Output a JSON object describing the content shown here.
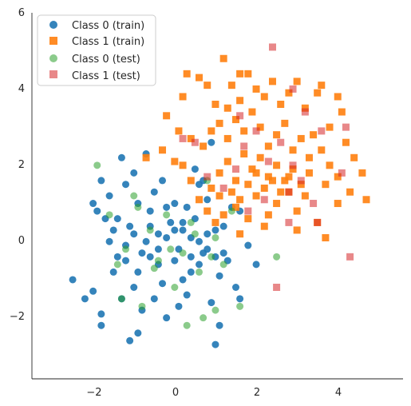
{
  "chart_data": {
    "type": "scatter",
    "title": "",
    "xlabel": "",
    "ylabel": "",
    "xlim": [
      -3.5,
      5.6
    ],
    "ylim": [
      -3.6,
      6.0
    ],
    "xticks": [
      -2,
      0,
      2,
      4
    ],
    "yticks": [
      -2,
      0,
      2,
      4,
      6
    ],
    "xtick_labels": [
      "−2",
      "0",
      "2",
      "4"
    ],
    "ytick_labels": [
      "−2",
      "0",
      "2",
      "4",
      "6"
    ],
    "grid": false,
    "legend_position": "top-left",
    "series": [
      {
        "name": "Class 0 (train)",
        "marker": "circle",
        "color": "#1f77b4",
        "opacity": 0.9,
        "points": [
          [
            -2.5,
            -1.0
          ],
          [
            -2.2,
            -1.5
          ],
          [
            -2.0,
            -1.3
          ],
          [
            -1.8,
            -1.9
          ],
          [
            -1.8,
            -2.2
          ],
          [
            -1.9,
            0.8
          ],
          [
            -1.7,
            0.6
          ],
          [
            -1.6,
            1.2
          ],
          [
            -1.5,
            0.3
          ],
          [
            -1.4,
            -0.4
          ],
          [
            -1.3,
            2.2
          ],
          [
            -1.2,
            1.5
          ],
          [
            -1.0,
            1.8
          ],
          [
            -1.1,
            0.4
          ],
          [
            -1.2,
            -0.5
          ],
          [
            -1.0,
            -1.2
          ],
          [
            -0.9,
            -2.4
          ],
          [
            -0.8,
            -1.8
          ],
          [
            -0.7,
            0.0
          ],
          [
            -0.6,
            0.8
          ],
          [
            -0.5,
            1.3
          ],
          [
            -0.4,
            -0.6
          ],
          [
            -0.3,
            -1.1
          ],
          [
            -0.2,
            -2.0
          ],
          [
            -0.1,
            0.5
          ],
          [
            0.0,
            1.0
          ],
          [
            0.1,
            -0.2
          ],
          [
            0.2,
            0.3
          ],
          [
            0.3,
            -1.4
          ],
          [
            0.4,
            -0.8
          ],
          [
            0.5,
            0.6
          ],
          [
            0.6,
            1.5
          ],
          [
            0.7,
            -0.3
          ],
          [
            0.8,
            0.2
          ],
          [
            0.9,
            -1.6
          ],
          [
            1.0,
            -2.7
          ],
          [
            1.1,
            -0.9
          ],
          [
            1.2,
            0.4
          ],
          [
            1.3,
            -0.5
          ],
          [
            1.5,
            -1.2
          ],
          [
            1.6,
            0.8
          ],
          [
            1.8,
            -0.1
          ],
          [
            2.0,
            -0.6
          ],
          [
            -1.5,
            -0.8
          ],
          [
            -1.3,
            -1.5
          ],
          [
            -1.1,
            -2.6
          ],
          [
            -0.9,
            1.0
          ],
          [
            -0.6,
            -0.4
          ],
          [
            -0.4,
            0.2
          ],
          [
            -0.2,
            0.9
          ],
          [
            0.0,
            -0.5
          ],
          [
            0.2,
            -1.0
          ],
          [
            0.4,
            0.1
          ],
          [
            0.6,
            -0.6
          ],
          [
            0.8,
            1.1
          ],
          [
            1.0,
            0.3
          ],
          [
            1.2,
            -0.3
          ],
          [
            1.4,
            0.9
          ],
          [
            -1.6,
            0.0
          ],
          [
            -1.4,
            0.6
          ],
          [
            -1.2,
            -0.1
          ],
          [
            -1.0,
            0.2
          ],
          [
            -0.8,
            -0.3
          ],
          [
            -0.6,
            0.4
          ],
          [
            -0.4,
            -0.2
          ],
          [
            -0.2,
            0.1
          ],
          [
            0.0,
            0.3
          ],
          [
            0.2,
            0.5
          ],
          [
            0.4,
            -0.4
          ],
          [
            0.6,
            0.0
          ],
          [
            0.8,
            -0.2
          ],
          [
            1.0,
            -0.4
          ],
          [
            0.5,
            1.9
          ],
          [
            0.7,
            1.6
          ],
          [
            -0.3,
            1.6
          ],
          [
            -0.5,
            -1.5
          ],
          [
            0.1,
            -1.7
          ],
          [
            1.1,
            -2.2
          ],
          [
            1.6,
            -1.5
          ],
          [
            -0.7,
            2.3
          ],
          [
            0.9,
            2.6
          ],
          [
            -2.0,
            1.0
          ],
          [
            -1.8,
            1.6
          ],
          [
            -0.9,
            -0.8
          ],
          [
            0.3,
            0.9
          ]
        ]
      },
      {
        "name": "Class 1 (train)",
        "marker": "square",
        "color": "#ff7f0e",
        "opacity": 0.9,
        "points": [
          [
            -0.7,
            2.2
          ],
          [
            -0.3,
            2.4
          ],
          [
            -0.2,
            3.3
          ],
          [
            0.2,
            3.8
          ],
          [
            0.3,
            4.4
          ],
          [
            0.6,
            4.3
          ],
          [
            0.8,
            4.1
          ],
          [
            1.0,
            3.6
          ],
          [
            1.2,
            4.8
          ],
          [
            1.4,
            4.1
          ],
          [
            1.6,
            4.4
          ],
          [
            1.8,
            4.4
          ],
          [
            2.0,
            4.0
          ],
          [
            2.2,
            3.8
          ],
          [
            2.4,
            4.2
          ],
          [
            2.6,
            3.6
          ],
          [
            2.8,
            3.9
          ],
          [
            3.0,
            4.2
          ],
          [
            3.2,
            3.5
          ],
          [
            3.5,
            3.9
          ],
          [
            3.6,
            4.1
          ],
          [
            4.0,
            3.8
          ],
          [
            4.1,
            3.4
          ],
          [
            3.8,
            3.0
          ],
          [
            4.2,
            2.6
          ],
          [
            4.4,
            2.2
          ],
          [
            4.6,
            1.8
          ],
          [
            4.7,
            1.1
          ],
          [
            4.3,
            1.3
          ],
          [
            4.0,
            1.0
          ],
          [
            3.7,
            1.5
          ],
          [
            3.5,
            0.5
          ],
          [
            3.2,
            1.2
          ],
          [
            3.0,
            0.8
          ],
          [
            2.8,
            1.3
          ],
          [
            2.5,
            1.0
          ],
          [
            2.3,
            0.7
          ],
          [
            2.0,
            1.2
          ],
          [
            1.8,
            0.6
          ],
          [
            1.5,
            0.9
          ],
          [
            1.2,
            0.7
          ],
          [
            1.0,
            0.5
          ],
          [
            0.8,
            0.8
          ],
          [
            0.6,
            1.1
          ],
          [
            0.4,
            1.6
          ],
          [
            0.2,
            2.0
          ],
          [
            0.0,
            2.1
          ],
          [
            1.3,
            2.7
          ],
          [
            1.5,
            3.2
          ],
          [
            1.7,
            2.9
          ],
          [
            1.9,
            3.4
          ],
          [
            2.1,
            3.0
          ],
          [
            2.3,
            2.5
          ],
          [
            2.5,
            2.8
          ],
          [
            2.7,
            3.1
          ],
          [
            2.9,
            2.4
          ],
          [
            3.1,
            2.7
          ],
          [
            3.3,
            2.2
          ],
          [
            3.4,
            2.8
          ],
          [
            3.6,
            2.4
          ],
          [
            3.8,
            2.0
          ],
          [
            4.0,
            1.7
          ],
          [
            1.1,
            1.8
          ],
          [
            1.3,
            2.1
          ],
          [
            1.5,
            1.6
          ],
          [
            1.7,
            2.3
          ],
          [
            1.9,
            1.9
          ],
          [
            2.1,
            2.2
          ],
          [
            2.3,
            1.7
          ],
          [
            2.5,
            2.0
          ],
          [
            2.7,
            1.6
          ],
          [
            2.9,
            1.9
          ],
          [
            3.1,
            1.5
          ],
          [
            3.3,
            1.8
          ],
          [
            0.9,
            1.4
          ],
          [
            1.1,
            1.2
          ],
          [
            1.4,
            1.3
          ],
          [
            1.6,
            1.1
          ],
          [
            1.8,
            1.5
          ],
          [
            2.0,
            1.8
          ],
          [
            2.2,
            1.4
          ],
          [
            2.4,
            1.6
          ],
          [
            2.6,
            1.3
          ],
          [
            2.8,
            1.7
          ],
          [
            0.7,
            2.5
          ],
          [
            0.9,
            2.9
          ],
          [
            1.1,
            3.1
          ],
          [
            1.3,
            3.5
          ],
          [
            1.6,
            3.7
          ],
          [
            3.7,
            0.1
          ],
          [
            3.0,
            0.3
          ],
          [
            2.2,
            0.4
          ],
          [
            1.6,
            0.2
          ],
          [
            0.4,
            2.7
          ],
          [
            0.1,
            2.9
          ]
        ]
      },
      {
        "name": "Class 0 (test)",
        "marker": "circle",
        "color": "#2ca02c",
        "opacity": 0.55,
        "points": [
          [
            -1.9,
            2.0
          ],
          [
            -1.6,
            0.7
          ],
          [
            -1.4,
            -0.6
          ],
          [
            -1.2,
            -0.2
          ],
          [
            -1.0,
            1.2
          ],
          [
            -0.8,
            -1.7
          ],
          [
            -0.6,
            0.3
          ],
          [
            -0.4,
            -0.5
          ],
          [
            -0.2,
            0.7
          ],
          [
            0.0,
            -1.2
          ],
          [
            0.2,
            -0.3
          ],
          [
            0.4,
            0.5
          ],
          [
            0.6,
            -0.8
          ],
          [
            0.8,
            1.6
          ],
          [
            1.0,
            0.1
          ],
          [
            1.2,
            -0.6
          ],
          [
            1.4,
            0.8
          ],
          [
            1.6,
            -1.7
          ],
          [
            -1.3,
            -1.5
          ],
          [
            -0.5,
            -0.7
          ],
          [
            0.3,
            -2.2
          ],
          [
            0.7,
            -2.0
          ],
          [
            1.0,
            -1.8
          ],
          [
            2.5,
            -0.4
          ],
          [
            0.5,
            0.2
          ],
          [
            -0.9,
            0.9
          ],
          [
            -0.1,
            -0.2
          ],
          [
            0.9,
            -0.4
          ]
        ]
      },
      {
        "name": "Class 1 (test)",
        "marker": "square",
        "color": "#d62728",
        "opacity": 0.55,
        "points": [
          [
            2.4,
            5.1
          ],
          [
            2.9,
            4.0
          ],
          [
            3.2,
            3.4
          ],
          [
            3.6,
            2.9
          ],
          [
            4.2,
            3.0
          ],
          [
            4.1,
            1.8
          ],
          [
            4.3,
            -0.4
          ],
          [
            3.5,
            0.5
          ],
          [
            2.5,
            -1.2
          ],
          [
            2.8,
            0.5
          ],
          [
            2.2,
            1.1
          ],
          [
            1.8,
            0.8
          ],
          [
            1.5,
            1.9
          ],
          [
            1.7,
            2.5
          ],
          [
            2.0,
            2.9
          ],
          [
            2.3,
            2.1
          ],
          [
            2.6,
            2.6
          ],
          [
            2.9,
            2.0
          ],
          [
            3.1,
            1.6
          ],
          [
            0.2,
            2.7
          ],
          [
            0.5,
            2.6
          ],
          [
            1.2,
            1.4
          ],
          [
            1.6,
            3.3
          ],
          [
            2.8,
            1.3
          ],
          [
            3.4,
            1.0
          ],
          [
            0.8,
            1.7
          ]
        ]
      }
    ]
  }
}
